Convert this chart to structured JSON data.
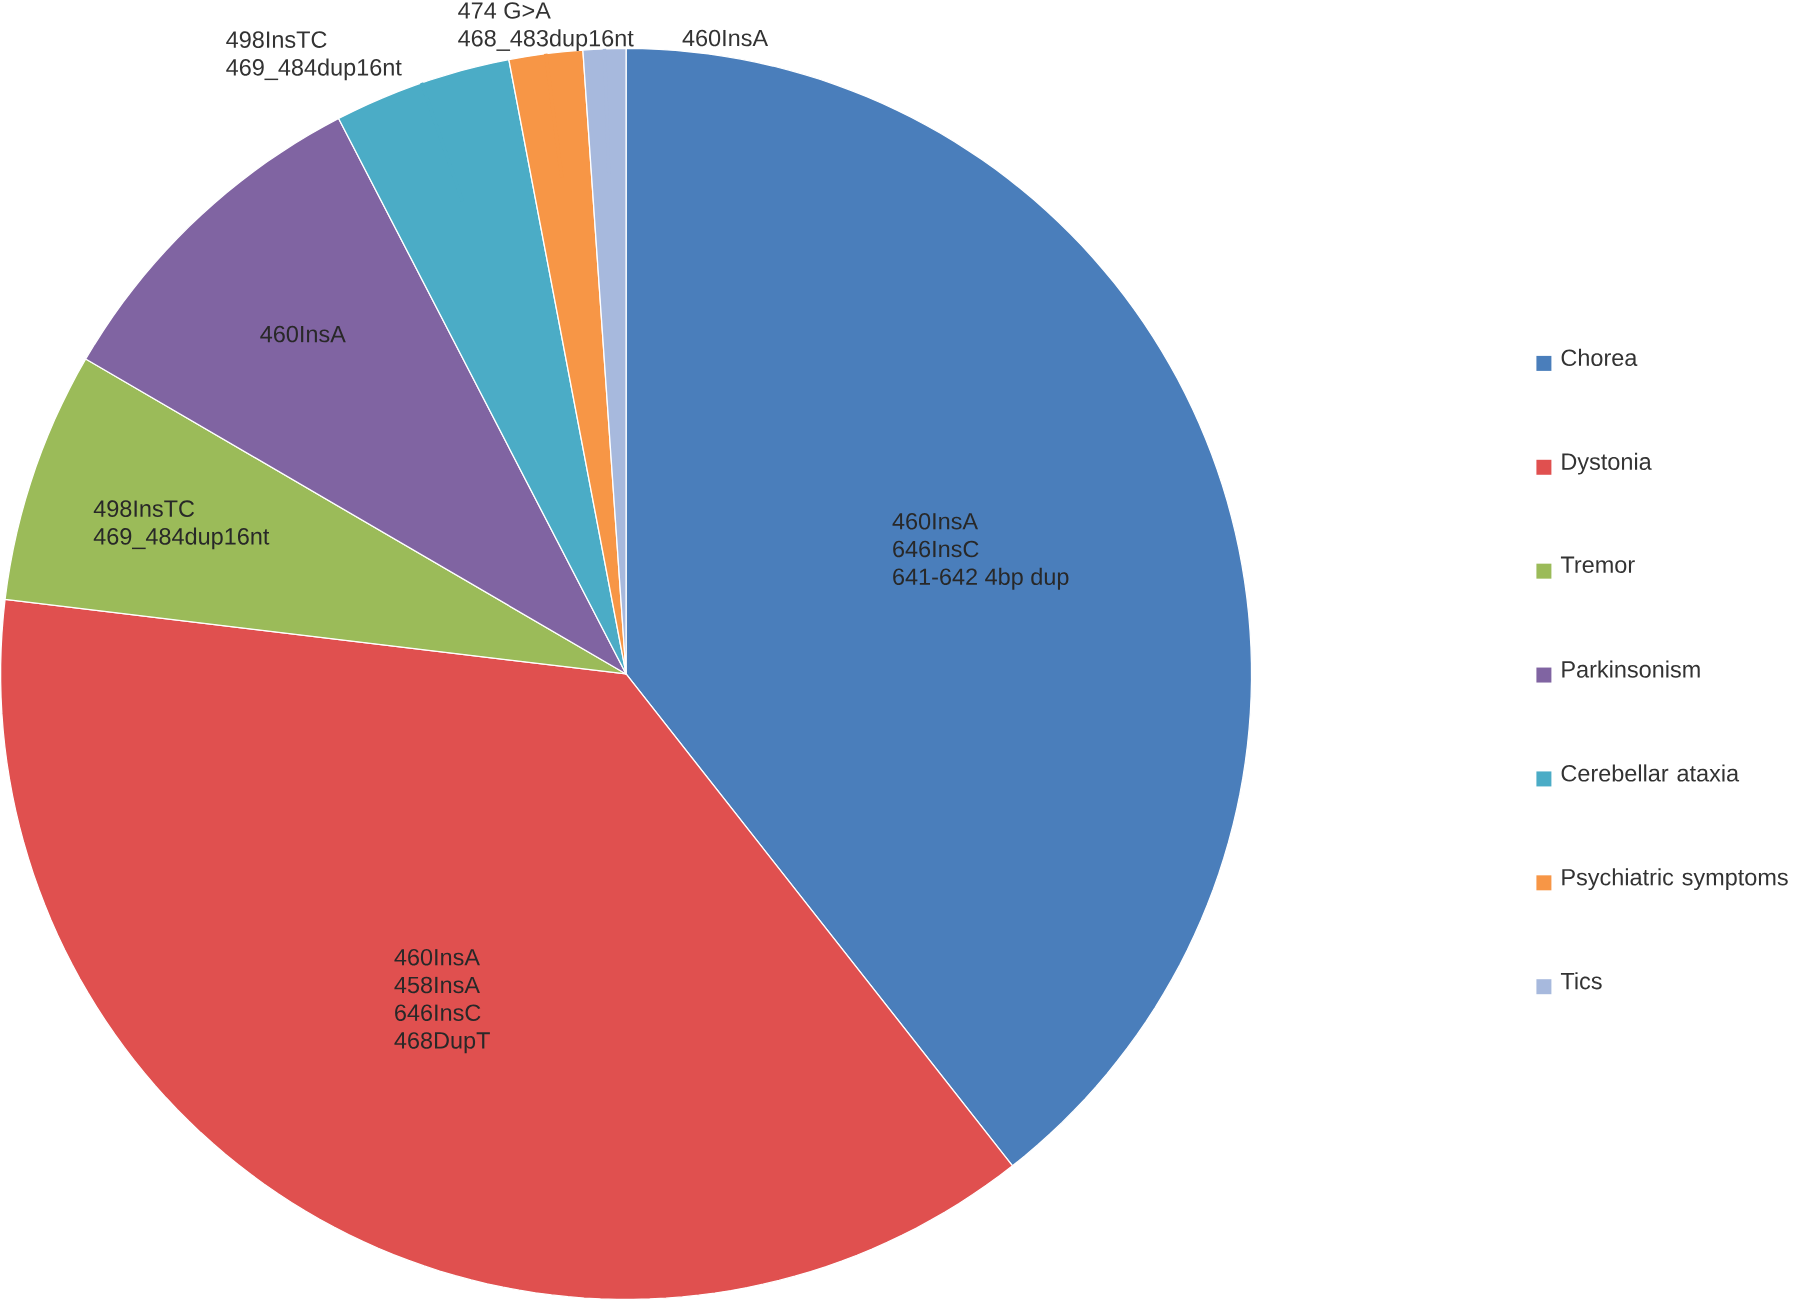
{
  "chart_data": {
    "type": "pie",
    "categories": [
      "Chorea",
      "Dystonia",
      "Tremor",
      "Parkinsonism",
      "Cerebellar ataxia",
      "Psychiatric symptoms",
      "Tics"
    ],
    "values": [
      39.4,
      37.5,
      6.5,
      9.0,
      4.6,
      1.9,
      1.1
    ],
    "colors": [
      "#4a7ebb",
      "#e0504f",
      "#9bbb59",
      "#8064a2",
      "#4bacc6",
      "#f79646",
      "#a7b9dd"
    ],
    "legend": "right",
    "annotations": [
      {
        "text": "460InsA",
        "x": "Chorea"
      },
      {
        "text": "646InsC",
        "x": "Chorea"
      },
      {
        "text": "641-642 4bp dup",
        "x": "Chorea"
      },
      {
        "text": "460InsA",
        "x": "Dystonia"
      },
      {
        "text": "458InsA",
        "x": "Dystonia"
      },
      {
        "text": "646InsC",
        "x": "Dystonia"
      },
      {
        "text": "468DupT",
        "x": "Dystonia"
      },
      {
        "text": "498InsTC",
        "x": "Tremor"
      },
      {
        "text": "469_484dup16nt",
        "x": "Tremor"
      },
      {
        "text": "460InsA",
        "x": "Parkinsonism"
      },
      {
        "text": "498InsTC",
        "x": "Cerebellar ataxia"
      },
      {
        "text": "469_484dup16nt",
        "x": "Cerebellar ataxia"
      },
      {
        "text": "474 G>A",
        "x": "Psychiatric symptoms"
      },
      {
        "text": "468_483dup16nt",
        "x": "Psychiatric symptoms"
      },
      {
        "text": "460InsA",
        "x": "Tics"
      }
    ]
  }
}
